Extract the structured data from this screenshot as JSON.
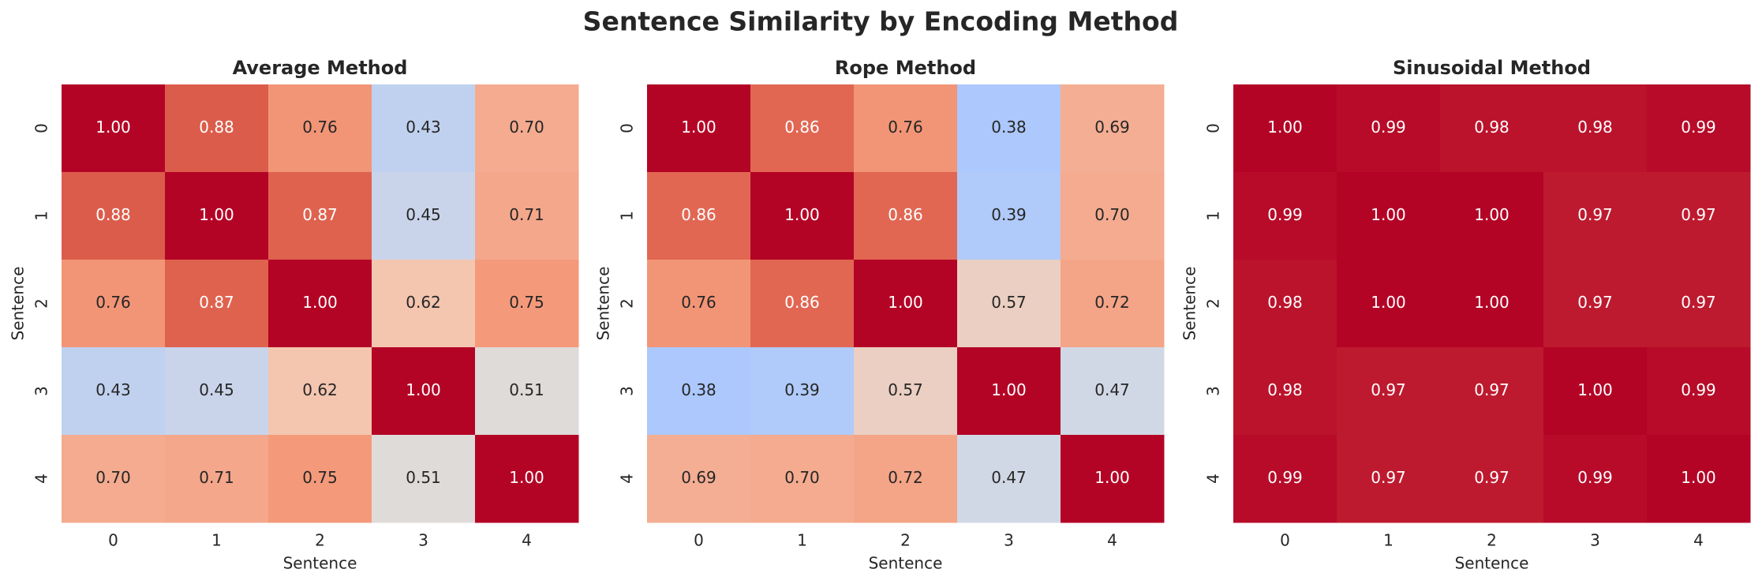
{
  "title": "Sentence Similarity by Encoding Method",
  "chart_data": [
    {
      "type": "heatmap",
      "title": "Average Method",
      "x_label": "Sentence",
      "y_label": "Sentence",
      "categories": [
        0,
        1,
        2,
        3,
        4
      ],
      "y_categories": [
        0,
        1,
        2,
        3,
        4
      ],
      "clim": [
        0,
        1
      ],
      "colormap": "coolwarm",
      "values": [
        [
          1.0,
          0.88,
          0.76,
          0.43,
          0.7
        ],
        [
          0.88,
          1.0,
          0.87,
          0.45,
          0.71
        ],
        [
          0.76,
          0.87,
          1.0,
          0.62,
          0.75
        ],
        [
          0.43,
          0.45,
          0.62,
          1.0,
          0.51
        ],
        [
          0.7,
          0.71,
          0.75,
          0.51,
          1.0
        ]
      ],
      "value_labels": [
        [
          "1.00",
          "0.88",
          "0.76",
          "0.43",
          "0.70"
        ],
        [
          "0.88",
          "1.00",
          "0.87",
          "0.45",
          "0.71"
        ],
        [
          "0.76",
          "0.87",
          "1.00",
          "0.62",
          "0.75"
        ],
        [
          "0.43",
          "0.45",
          "0.62",
          "1.00",
          "0.51"
        ],
        [
          "0.70",
          "0.71",
          "0.75",
          "0.51",
          "1.00"
        ]
      ]
    },
    {
      "type": "heatmap",
      "title": "Rope Method",
      "x_label": "Sentence",
      "y_label": "Sentence",
      "categories": [
        0,
        1,
        2,
        3,
        4
      ],
      "y_categories": [
        0,
        1,
        2,
        3,
        4
      ],
      "clim": [
        0,
        1
      ],
      "colormap": "coolwarm",
      "values": [
        [
          1.0,
          0.86,
          0.76,
          0.38,
          0.69
        ],
        [
          0.86,
          1.0,
          0.86,
          0.39,
          0.7
        ],
        [
          0.76,
          0.86,
          1.0,
          0.57,
          0.72
        ],
        [
          0.38,
          0.39,
          0.57,
          1.0,
          0.47
        ],
        [
          0.69,
          0.7,
          0.72,
          0.47,
          1.0
        ]
      ],
      "value_labels": [
        [
          "1.00",
          "0.86",
          "0.76",
          "0.38",
          "0.69"
        ],
        [
          "0.86",
          "1.00",
          "0.86",
          "0.39",
          "0.70"
        ],
        [
          "0.76",
          "0.86",
          "1.00",
          "0.57",
          "0.72"
        ],
        [
          "0.38",
          "0.39",
          "0.57",
          "1.00",
          "0.47"
        ],
        [
          "0.69",
          "0.70",
          "0.72",
          "0.47",
          "1.00"
        ]
      ]
    },
    {
      "type": "heatmap",
      "title": "Sinusoidal Method",
      "x_label": "Sentence",
      "y_label": "Sentence",
      "categories": [
        0,
        1,
        2,
        3,
        4
      ],
      "y_categories": [
        0,
        1,
        2,
        3,
        4
      ],
      "clim": [
        0,
        1
      ],
      "colormap": "coolwarm",
      "values": [
        [
          1.0,
          0.99,
          0.98,
          0.98,
          0.99
        ],
        [
          0.99,
          1.0,
          1.0,
          0.97,
          0.97
        ],
        [
          0.98,
          1.0,
          1.0,
          0.97,
          0.97
        ],
        [
          0.98,
          0.97,
          0.97,
          1.0,
          0.99
        ],
        [
          0.99,
          0.97,
          0.97,
          0.99,
          1.0
        ]
      ],
      "value_labels": [
        [
          "1.00",
          "0.99",
          "0.98",
          "0.98",
          "0.99"
        ],
        [
          "0.99",
          "1.00",
          "1.00",
          "0.97",
          "0.97"
        ],
        [
          "0.98",
          "1.00",
          "1.00",
          "0.97",
          "0.97"
        ],
        [
          "0.98",
          "0.97",
          "0.97",
          "1.00",
          "0.99"
        ],
        [
          "0.99",
          "0.97",
          "0.97",
          "0.99",
          "1.00"
        ]
      ]
    }
  ]
}
